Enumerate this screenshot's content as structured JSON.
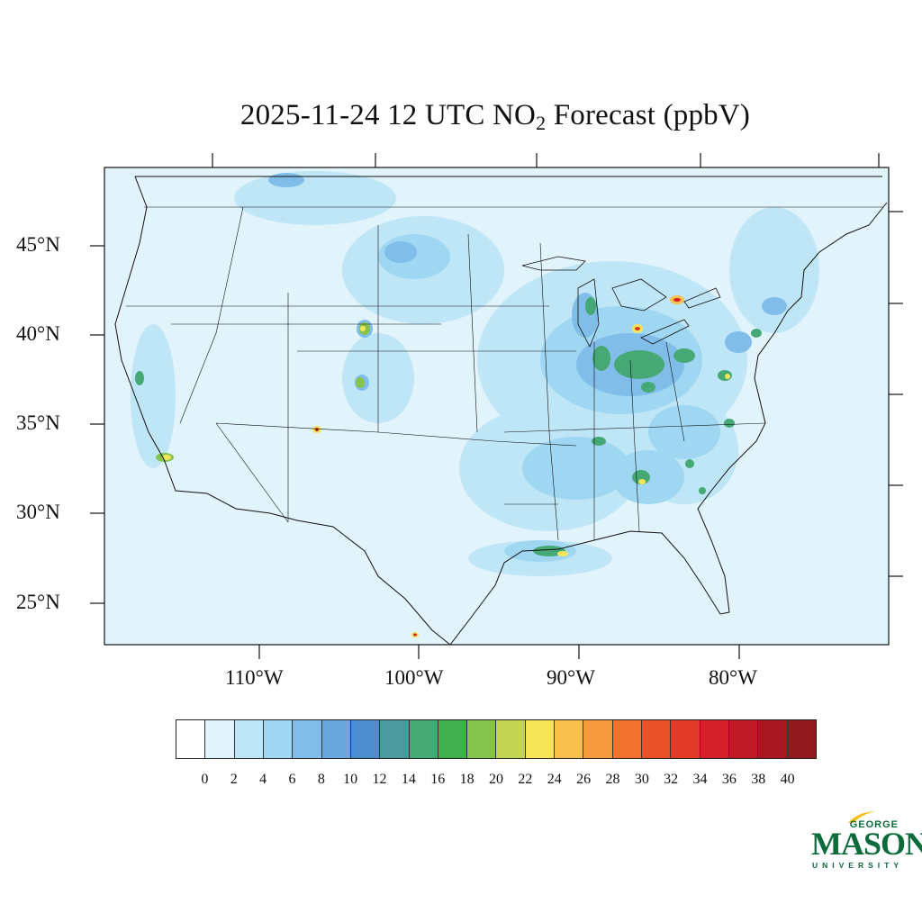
{
  "title": {
    "prefix": "2025-11-24 12 UTC NO",
    "subscript": "2",
    "suffix": " Forecast (ppbV)"
  },
  "map": {
    "lat_labels": [
      "45°N",
      "40°N",
      "35°N",
      "30°N",
      "25°N"
    ],
    "lon_labels": [
      "110°W",
      "100°W",
      "90°W",
      "80°W"
    ],
    "background_color": "#e1f3fb"
  },
  "colorbar": {
    "colors": [
      "#ffffff",
      "#e1f3fb",
      "#bfe6f7",
      "#9fd7f3",
      "#80bde8",
      "#68a7dc",
      "#4c8ecd",
      "#4b9a9d",
      "#46a874",
      "#3fb04d",
      "#85c44c",
      "#c3d454",
      "#f6e558",
      "#f7bf4c",
      "#f69a3e",
      "#f2712f",
      "#ea5329",
      "#e23a28",
      "#d3202a",
      "#be1b27",
      "#a81823",
      "#921a1f"
    ],
    "ticks": [
      "0",
      "2",
      "4",
      "6",
      "8",
      "10",
      "12",
      "14",
      "16",
      "18",
      "20",
      "22",
      "24",
      "26",
      "28",
      "30",
      "32",
      "34",
      "36",
      "38",
      "40"
    ]
  },
  "logo": {
    "top": "GEORGE",
    "main": "MASON",
    "sub": "UNIVERSITY",
    "color": "#0b6b3a",
    "accent": "#f2c01c"
  }
}
